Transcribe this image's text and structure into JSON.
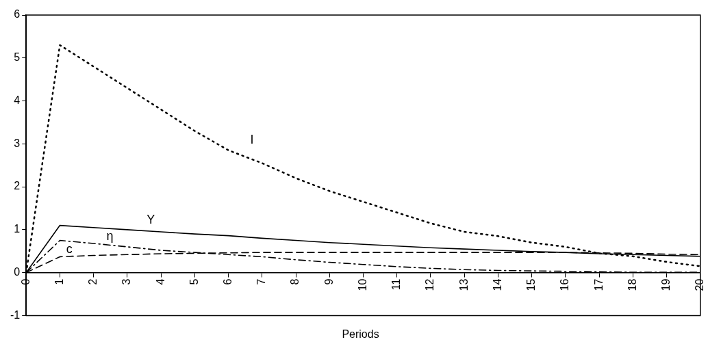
{
  "chart_data": {
    "type": "line",
    "xlabel": "Periods",
    "x": [
      0,
      1,
      2,
      3,
      4,
      5,
      6,
      7,
      8,
      9,
      10,
      11,
      12,
      13,
      14,
      15,
      16,
      17,
      18,
      19,
      20
    ],
    "series": [
      {
        "name": "I",
        "color": "#000000",
        "line_style": "dotted",
        "values": [
          0,
          5.3,
          4.8,
          4.3,
          3.8,
          3.3,
          2.85,
          2.55,
          2.2,
          1.9,
          1.65,
          1.4,
          1.15,
          0.95,
          0.85,
          0.7,
          0.6,
          0.45,
          0.38,
          0.25,
          0.15
        ]
      },
      {
        "name": "Y",
        "color": "#000000",
        "line_style": "solid",
        "values": [
          0,
          1.1,
          1.05,
          1.0,
          0.95,
          0.9,
          0.86,
          0.8,
          0.75,
          0.7,
          0.66,
          0.62,
          0.58,
          0.55,
          0.52,
          0.49,
          0.47,
          0.44,
          0.42,
          0.4,
          0.38
        ]
      },
      {
        "name": "η",
        "color": "#000000",
        "line_style": "dashdot",
        "values": [
          0,
          0.75,
          0.68,
          0.6,
          0.52,
          0.47,
          0.42,
          0.37,
          0.3,
          0.24,
          0.19,
          0.14,
          0.1,
          0.07,
          0.05,
          0.04,
          0.03,
          0.02,
          0.01,
          0.01,
          0.01
        ]
      },
      {
        "name": "c",
        "color": "#000000",
        "line_style": "dashed",
        "values": [
          0,
          0.37,
          0.4,
          0.42,
          0.44,
          0.45,
          0.46,
          0.47,
          0.47,
          0.47,
          0.47,
          0.47,
          0.47,
          0.47,
          0.47,
          0.47,
          0.47,
          0.46,
          0.45,
          0.43,
          0.42
        ]
      }
    ],
    "xlim": [
      0,
      20
    ],
    "xticks": [
      0,
      1,
      2,
      3,
      4,
      5,
      6,
      7,
      8,
      9,
      10,
      11,
      12,
      13,
      14,
      15,
      16,
      17,
      18,
      19,
      20
    ],
    "ylim": [
      -1,
      6
    ],
    "yticks": [
      -1,
      0,
      1,
      2,
      3,
      4,
      5,
      6
    ],
    "grid": false,
    "legend": false,
    "marker": "none"
  }
}
